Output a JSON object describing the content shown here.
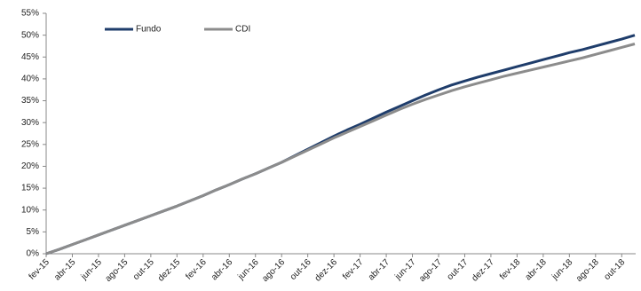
{
  "chart_data": {
    "type": "line",
    "categories": [
      "fev-15",
      null,
      "abr-15",
      null,
      "jun-15",
      null,
      "ago-15",
      null,
      "out-15",
      null,
      "dez-15",
      null,
      "fev-16",
      null,
      "abr-16",
      null,
      "jun-16",
      null,
      "ago-16",
      null,
      "out-16",
      null,
      "dez-16",
      null,
      "fev-17",
      null,
      "abr-17",
      null,
      "jun-17",
      null,
      "ago-17",
      null,
      "out-17",
      null,
      "dez-17",
      null,
      "fev-18",
      null,
      "abr-18",
      null,
      "jun-18",
      null,
      "ago-18",
      null,
      "out-18",
      null
    ],
    "series": [
      {
        "name": "Fundo",
        "color": "#1f3d6b",
        "values": [
          0,
          1.0,
          2.1,
          3.2,
          4.3,
          5.4,
          6.5,
          7.6,
          8.7,
          9.8,
          10.9,
          12.1,
          13.3,
          14.6,
          15.8,
          17.1,
          18.3,
          19.6,
          20.9,
          22.4,
          23.9,
          25.4,
          26.9,
          28.3,
          29.6,
          31.0,
          32.4,
          33.7,
          35.0,
          36.3,
          37.5,
          38.6,
          39.5,
          40.4,
          41.2,
          42.0,
          42.8,
          43.6,
          44.4,
          45.2,
          46.0,
          46.7,
          47.5,
          48.3,
          49.1,
          50.0
        ]
      },
      {
        "name": "CDI",
        "color": "#8c8c8c",
        "values": [
          0,
          1.0,
          2.1,
          3.2,
          4.3,
          5.4,
          6.5,
          7.6,
          8.7,
          9.8,
          10.9,
          12.1,
          13.3,
          14.6,
          15.8,
          17.1,
          18.3,
          19.6,
          20.9,
          22.3,
          23.7,
          25.1,
          26.5,
          27.8,
          29.1,
          30.4,
          31.7,
          33.0,
          34.2,
          35.3,
          36.3,
          37.3,
          38.2,
          39.0,
          39.8,
          40.6,
          41.3,
          42.0,
          42.7,
          43.4,
          44.1,
          44.8,
          45.6,
          46.4,
          47.2,
          48.0
        ]
      }
    ],
    "ylim": [
      0,
      55
    ],
    "yticks": [
      {
        "value": 0,
        "label": "0%"
      },
      {
        "value": 5,
        "label": "5%"
      },
      {
        "value": 10,
        "label": "10%"
      },
      {
        "value": 15,
        "label": "15%"
      },
      {
        "value": 20,
        "label": "20%"
      },
      {
        "value": 25,
        "label": "25%"
      },
      {
        "value": 30,
        "label": "30%"
      },
      {
        "value": 35,
        "label": "35%"
      },
      {
        "value": 40,
        "label": "40%"
      },
      {
        "value": 45,
        "label": "45%"
      },
      {
        "value": 50,
        "label": "50%"
      },
      {
        "value": 55,
        "label": "55%"
      }
    ],
    "grid": false,
    "legend": "upper-left"
  }
}
